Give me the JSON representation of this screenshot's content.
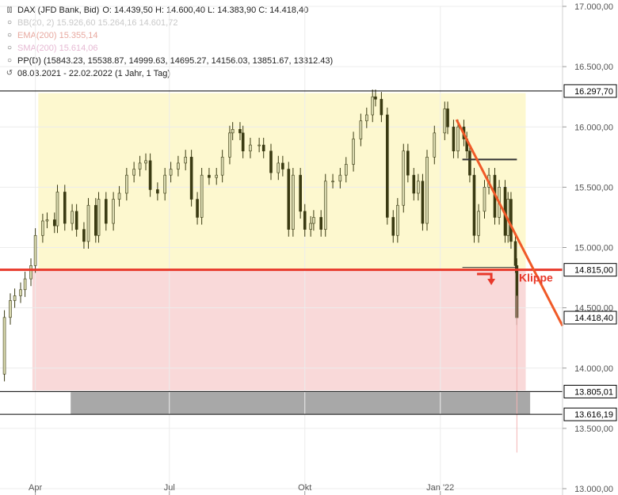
{
  "legend": {
    "title": "DAX (JFD Bank, Bid)",
    "ohlc": "O: 14.439,50   H: 14.600,40   L: 14.383,90   C: 14.418,40",
    "bb": "BB(20, 2)   15.926,60   15.264,16   14.601,72",
    "ema": "EMA(200)   15.355,14",
    "sma": "SMA(200)   15.614,06",
    "pp": "PP(D)   (15843.23, 15538.87, 14999.63, 14695.27, 14156.03, 13851.67, 13312.43)",
    "range": "08.03.2021 - 22.02.2022   (1 Jahr, 1 Tag)"
  },
  "colors": {
    "up": "#d9d9b0",
    "candle": "#3a3a12",
    "resistance_zone": "#fdf8cf",
    "breakdown_zone": "#f9d9d9",
    "support_line": "#e8382a",
    "trend_line": "#f05a28",
    "gray_band": "#a8a8a8"
  },
  "chart_data": {
    "type": "candlestick",
    "instrument": "DAX (JFD Bank, Bid)",
    "ylim": [
      13000,
      17000
    ],
    "y_ticks": [
      "17.000,00",
      "16.500,00",
      "16.000,00",
      "15.500,00",
      "15.000,00",
      "14.500,00",
      "14.000,00",
      "13.500,00",
      "13.000,00"
    ],
    "y_tick_values": [
      17000,
      16500,
      16000,
      15500,
      15000,
      14500,
      14000,
      13500,
      13000
    ],
    "x_ticks": [
      "Apr",
      "Jul",
      "Okt",
      "Jan '22"
    ],
    "x_tick_dates": [
      "2021-04-01",
      "2021-07-01",
      "2021-10-01",
      "2022-01-01"
    ],
    "x_range": [
      "2021-03-08",
      "2022-03-25"
    ],
    "levels": [
      {
        "label": "16.297,70",
        "value": 16297.7
      },
      {
        "label": "14.815,00",
        "value": 14815.0
      },
      {
        "label": "14.418,40",
        "value": 14418.4
      },
      {
        "label": "13.805,01",
        "value": 13805.01
      },
      {
        "label": "13.616,19",
        "value": 13616.19
      }
    ],
    "annotation": "Klippe",
    "resistance_zone": {
      "from": "2021-04-03",
      "to": "2022-02-28",
      "low": 14815,
      "high": 16280
    },
    "breakdown_zone": {
      "from": "2021-03-30",
      "to": "2022-02-28",
      "low": 13815,
      "high": 14815
    },
    "gray_band": {
      "from": "2021-04-25",
      "to": "2022-03-03",
      "low": 13620,
      "high": 13800
    },
    "trend_line": {
      "start": [
        "2022-01-12",
        16060
      ],
      "end": [
        "2022-03-25",
        14350
      ]
    },
    "range_box": {
      "from": "2022-01-16",
      "to": "2022-02-22",
      "top": 15730,
      "bottom": 14835
    },
    "closes": [
      {
        "d": "2021-03-08",
        "c": 13950
      },
      {
        "d": "2021-03-11",
        "c": 14420
      },
      {
        "d": "2021-03-15",
        "c": 14560
      },
      {
        "d": "2021-03-18",
        "c": 14600
      },
      {
        "d": "2021-03-22",
        "c": 14650
      },
      {
        "d": "2021-03-25",
        "c": 14740
      },
      {
        "d": "2021-03-29",
        "c": 14850
      },
      {
        "d": "2021-04-01",
        "c": 15100
      },
      {
        "d": "2021-04-06",
        "c": 15220
      },
      {
        "d": "2021-04-09",
        "c": 15230
      },
      {
        "d": "2021-04-14",
        "c": 15180
      },
      {
        "d": "2021-04-16",
        "c": 15460
      },
      {
        "d": "2021-04-21",
        "c": 15200
      },
      {
        "d": "2021-04-26",
        "c": 15300
      },
      {
        "d": "2021-04-29",
        "c": 15150
      },
      {
        "d": "2021-05-04",
        "c": 15050
      },
      {
        "d": "2021-05-07",
        "c": 15350
      },
      {
        "d": "2021-05-12",
        "c": 15100
      },
      {
        "d": "2021-05-14",
        "c": 15400
      },
      {
        "d": "2021-05-19",
        "c": 15200
      },
      {
        "d": "2021-05-24",
        "c": 15400
      },
      {
        "d": "2021-05-28",
        "c": 15450
      },
      {
        "d": "2021-06-02",
        "c": 15600
      },
      {
        "d": "2021-06-07",
        "c": 15650
      },
      {
        "d": "2021-06-11",
        "c": 15700
      },
      {
        "d": "2021-06-15",
        "c": 15720
      },
      {
        "d": "2021-06-18",
        "c": 15480
      },
      {
        "d": "2021-06-23",
        "c": 15450
      },
      {
        "d": "2021-06-28",
        "c": 15600
      },
      {
        "d": "2021-07-02",
        "c": 15650
      },
      {
        "d": "2021-07-07",
        "c": 15700
      },
      {
        "d": "2021-07-12",
        "c": 15750
      },
      {
        "d": "2021-07-16",
        "c": 15400
      },
      {
        "d": "2021-07-20",
        "c": 15250
      },
      {
        "d": "2021-07-23",
        "c": 15600
      },
      {
        "d": "2021-07-28",
        "c": 15580
      },
      {
        "d": "2021-08-02",
        "c": 15600
      },
      {
        "d": "2021-08-06",
        "c": 15750
      },
      {
        "d": "2021-08-11",
        "c": 15950
      },
      {
        "d": "2021-08-13",
        "c": 15980
      },
      {
        "d": "2021-08-18",
        "c": 15950
      },
      {
        "d": "2021-08-20",
        "c": 15800
      },
      {
        "d": "2021-08-25",
        "c": 15850
      },
      {
        "d": "2021-08-31",
        "c": 15850
      },
      {
        "d": "2021-09-03",
        "c": 15800
      },
      {
        "d": "2021-09-08",
        "c": 15620
      },
      {
        "d": "2021-09-13",
        "c": 15700
      },
      {
        "d": "2021-09-16",
        "c": 15650
      },
      {
        "d": "2021-09-20",
        "c": 15150
      },
      {
        "d": "2021-09-23",
        "c": 15600
      },
      {
        "d": "2021-09-28",
        "c": 15300
      },
      {
        "d": "2021-10-01",
        "c": 15150
      },
      {
        "d": "2021-10-05",
        "c": 15200
      },
      {
        "d": "2021-10-07",
        "c": 15250
      },
      {
        "d": "2021-10-12",
        "c": 15150
      },
      {
        "d": "2021-10-15",
        "c": 15550
      },
      {
        "d": "2021-10-20",
        "c": 15550
      },
      {
        "d": "2021-10-25",
        "c": 15600
      },
      {
        "d": "2021-10-29",
        "c": 15690
      },
      {
        "d": "2021-11-03",
        "c": 15900
      },
      {
        "d": "2021-11-08",
        "c": 16050
      },
      {
        "d": "2021-11-12",
        "c": 16100
      },
      {
        "d": "2021-11-16",
        "c": 16250
      },
      {
        "d": "2021-11-18",
        "c": 16230
      },
      {
        "d": "2021-11-22",
        "c": 16100
      },
      {
        "d": "2021-11-26",
        "c": 15250
      },
      {
        "d": "2021-11-30",
        "c": 15100
      },
      {
        "d": "2021-12-03",
        "c": 15350
      },
      {
        "d": "2021-12-07",
        "c": 15800
      },
      {
        "d": "2021-12-10",
        "c": 15600
      },
      {
        "d": "2021-12-14",
        "c": 15450
      },
      {
        "d": "2021-12-17",
        "c": 15550
      },
      {
        "d": "2021-12-20",
        "c": 15200
      },
      {
        "d": "2021-12-23",
        "c": 15750
      },
      {
        "d": "2021-12-28",
        "c": 15950
      },
      {
        "d": "2022-01-04",
        "c": 16150
      },
      {
        "d": "2022-01-06",
        "c": 16000
      },
      {
        "d": "2022-01-10",
        "c": 15800
      },
      {
        "d": "2022-01-13",
        "c": 16000
      },
      {
        "d": "2022-01-17",
        "c": 15900
      },
      {
        "d": "2022-01-19",
        "c": 15800
      },
      {
        "d": "2022-01-21",
        "c": 15600
      },
      {
        "d": "2022-01-24",
        "c": 15100
      },
      {
        "d": "2022-01-27",
        "c": 15300
      },
      {
        "d": "2022-01-31",
        "c": 15500
      },
      {
        "d": "2022-02-03",
        "c": 15600
      },
      {
        "d": "2022-02-07",
        "c": 15250
      },
      {
        "d": "2022-02-10",
        "c": 15500
      },
      {
        "d": "2022-02-14",
        "c": 15100
      },
      {
        "d": "2022-02-16",
        "c": 15400
      },
      {
        "d": "2022-02-18",
        "c": 15050
      },
      {
        "d": "2022-02-21",
        "c": 14850
      },
      {
        "d": "2022-02-22",
        "c": 14418
      }
    ]
  }
}
